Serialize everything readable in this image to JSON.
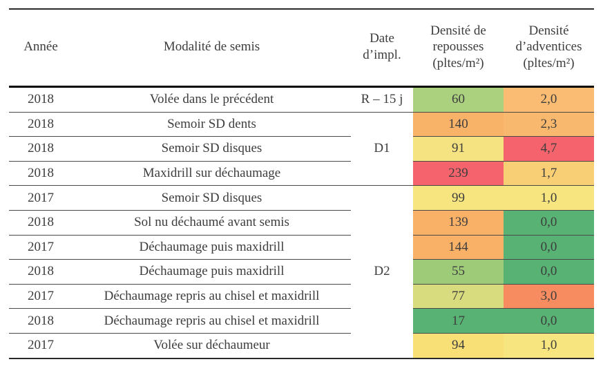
{
  "table": {
    "headers": {
      "annee": "Année",
      "modalite": "Modalité de semis",
      "date": "Date\nd’impl.",
      "repousses": "Densité de\nrepousses\n(pltes/m²)",
      "adventices": "Densité\nd’adventices\n(pltes/m²)"
    },
    "palette": {
      "green": "#58b273",
      "light_green": "#9ecb77",
      "yellow_green": "#d9dc7e",
      "yellow": "#f7e57f",
      "gold": "#f8cf75",
      "orange": "#f8b368",
      "salmon": "#f68c60",
      "red": "#f5646c"
    },
    "rows": [
      {
        "annee": "2018",
        "modalite": "Volée dans le précédent",
        "date": {
          "label": "R – 15 j",
          "rowspan": 1
        },
        "repousses": {
          "value": "60",
          "color": "#abd07e"
        },
        "adventices": {
          "value": "2,0",
          "color": "#f9bc72"
        }
      },
      {
        "annee": "2018",
        "modalite": "Semoir SD dents",
        "date": {
          "label": "D1",
          "rowspan": 3
        },
        "repousses": {
          "value": "140",
          "color": "#f8b368"
        },
        "adventices": {
          "value": "2,3",
          "color": "#f8b96e"
        }
      },
      {
        "annee": "2018",
        "modalite": "Semoir SD disques",
        "repousses": {
          "value": "91",
          "color": "#f5e381"
        },
        "adventices": {
          "value": "4,7",
          "color": "#f5646c"
        }
      },
      {
        "annee": "2018",
        "modalite": "Maxidrill sur déchaumage",
        "repousses": {
          "value": "239",
          "color": "#f5646c"
        },
        "adventices": {
          "value": "1,7",
          "color": "#f8cf75"
        }
      },
      {
        "annee": "2017",
        "modalite": "Semoir SD disques",
        "date": {
          "label": "D2",
          "rowspan": 7
        },
        "repousses": {
          "value": "99",
          "color": "#f7e57f"
        },
        "adventices": {
          "value": "1,0",
          "color": "#f7e57f"
        }
      },
      {
        "annee": "2018",
        "modalite": "Sol nu déchaumé avant semis",
        "repousses": {
          "value": "139",
          "color": "#f8b166"
        },
        "adventices": {
          "value": "0,0",
          "color": "#58b273"
        }
      },
      {
        "annee": "2017",
        "modalite": "Déchaumage puis maxidrill",
        "repousses": {
          "value": "144",
          "color": "#f8b166"
        },
        "adventices": {
          "value": "0,0",
          "color": "#58b273"
        }
      },
      {
        "annee": "2018",
        "modalite": "Déchaumage puis maxidrill",
        "repousses": {
          "value": "55",
          "color": "#9ecb77"
        },
        "adventices": {
          "value": "0,0",
          "color": "#58b273"
        }
      },
      {
        "annee": "2017",
        "modalite": "Déchaumage repris au chisel et maxidrill",
        "repousses": {
          "value": "77",
          "color": "#d9dc7e"
        },
        "adventices": {
          "value": "3,0",
          "color": "#f68c60"
        }
      },
      {
        "annee": "2018",
        "modalite": "Déchaumage repris au chisel et maxidrill",
        "repousses": {
          "value": "17",
          "color": "#58b273"
        },
        "adventices": {
          "value": "0,0",
          "color": "#58b273"
        }
      },
      {
        "annee": "2017",
        "modalite": "Volée sur déchaumeur",
        "repousses": {
          "value": "94",
          "color": "#f9e076"
        },
        "adventices": {
          "value": "1,0",
          "color": "#f7e57f"
        }
      }
    ]
  }
}
